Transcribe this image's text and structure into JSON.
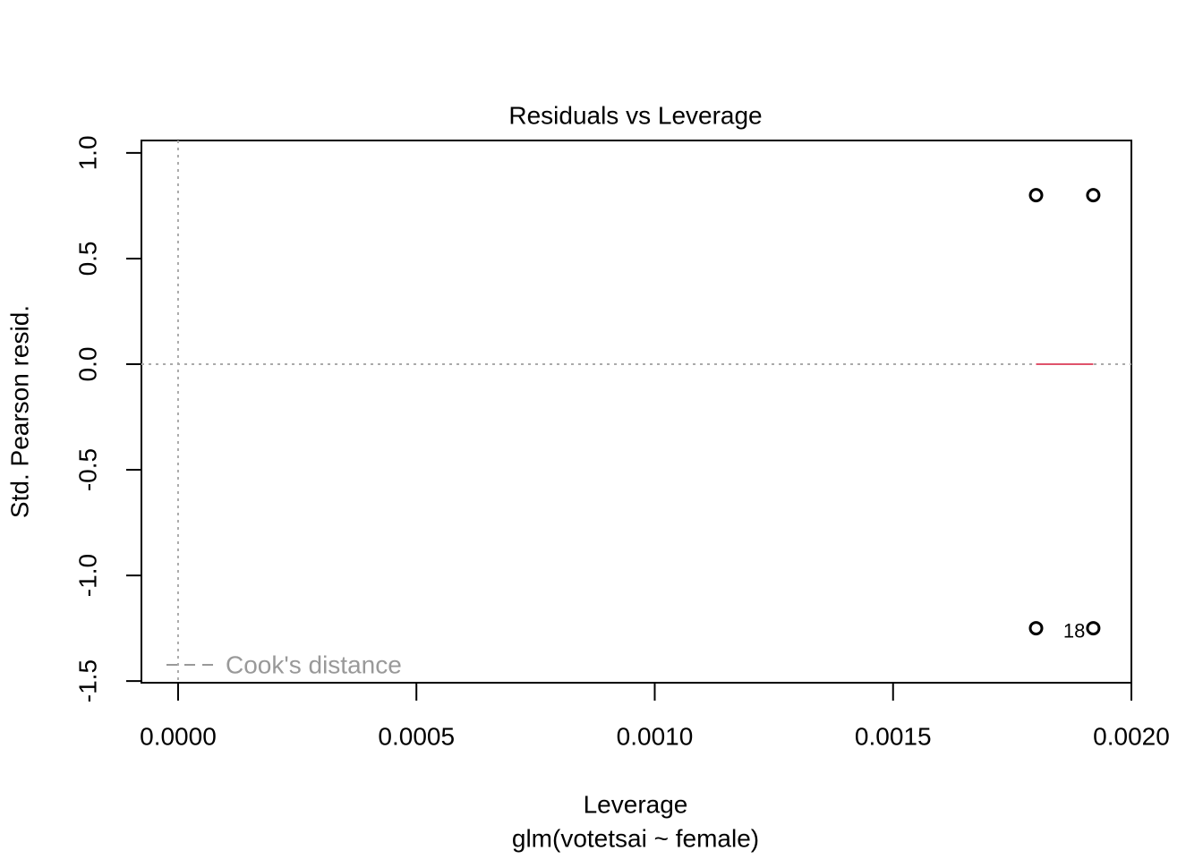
{
  "chart_data": {
    "type": "scatter",
    "title": "Residuals vs Leverage",
    "x_label": "Leverage",
    "subtitle": "glm(votetsai ~ female)",
    "y_label": "Std. Pearson resid.",
    "series": [
      {
        "color": "#000000",
        "x": [
          0.0018,
          0.00192,
          0.0018,
          0.00192
        ],
        "values": [
          0.8,
          0.8,
          -1.25,
          -1.25
        ]
      }
    ],
    "smooth": {
      "color": "#df536b",
      "x": [
        0.0018,
        0.00192
      ],
      "values": [
        0,
        0
      ]
    },
    "reference_lines": {
      "x": 0,
      "y": 0,
      "color": "#aaaaaa"
    },
    "annotations": [
      {
        "text": "18",
        "x": 0.00188,
        "y": -1.27
      }
    ],
    "legend": {
      "labels": [
        "Cook's distance"
      ],
      "position": "bottomleft",
      "color": "#999999"
    },
    "xlim": [
      -7.69e-05,
      0.002
    ],
    "ylim": [
      -1.508,
      1.059
    ],
    "xticks": [
      {
        "value": 0,
        "label": "0.0000"
      },
      {
        "value": 0.0005,
        "label": "0.0005"
      },
      {
        "value": 0.001,
        "label": "0.0010"
      },
      {
        "value": 0.0015,
        "label": "0.0015"
      },
      {
        "value": 0.002,
        "label": "0.0020"
      }
    ],
    "yticks": [
      -1.5,
      {
        "value": -1,
        "label": "-1.0"
      },
      -0.5,
      {
        "value": 0,
        "label": "0.0"
      },
      0.5,
      {
        "value": 1,
        "label": "1.0"
      }
    ]
  }
}
